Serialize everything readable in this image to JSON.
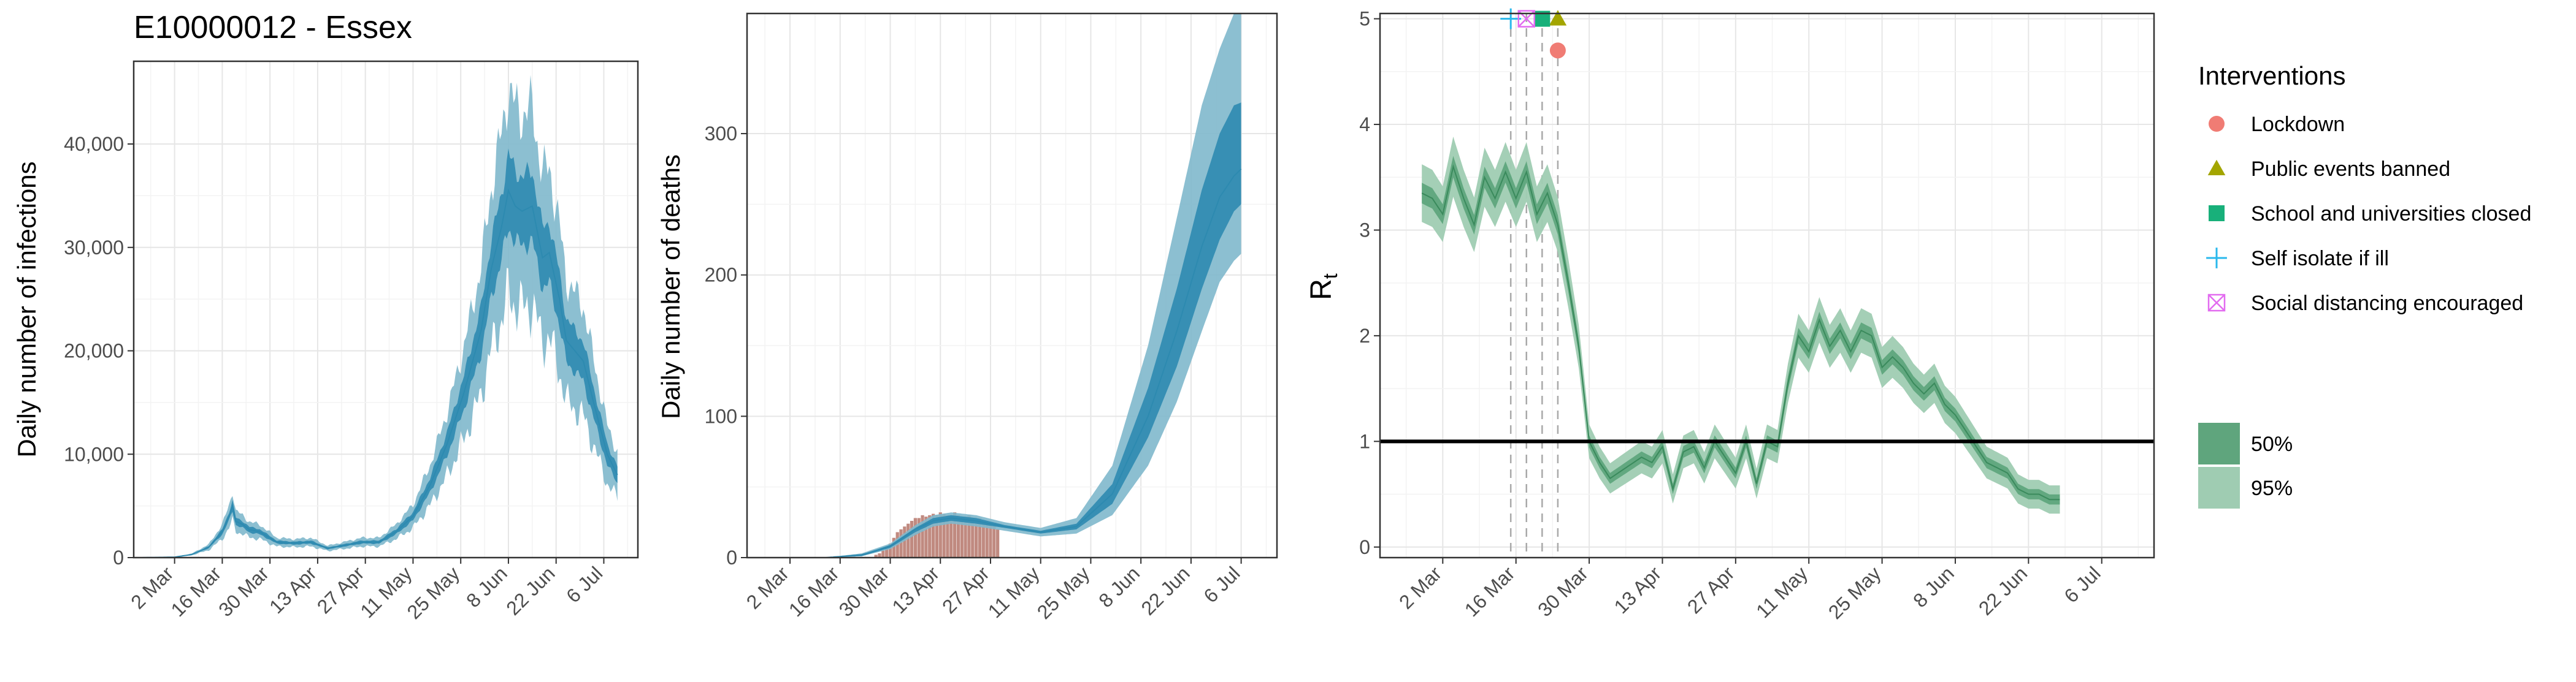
{
  "title": "E10000012 - Essex",
  "chart_data": [
    {
      "type": "area",
      "ylabel": "Daily number of infections",
      "xlabel": "",
      "x_ticks": [
        "2 Mar",
        "16 Mar",
        "30 Mar",
        "13 Apr",
        "27 Apr",
        "11 May",
        "25 May",
        "8 Jun",
        "22 Jun",
        "6 Jul"
      ],
      "y_ticks": [
        "0",
        "10,000",
        "20,000",
        "30,000",
        "40,000"
      ],
      "ylim": [
        0,
        48000
      ],
      "median": [
        [
          -10,
          0
        ],
        [
          0,
          50
        ],
        [
          5,
          300
        ],
        [
          10,
          1000
        ],
        [
          14,
          2500
        ],
        [
          16,
          4000
        ],
        [
          17,
          5000
        ],
        [
          18,
          3500
        ],
        [
          20,
          3200
        ],
        [
          22,
          2700
        ],
        [
          25,
          2500
        ],
        [
          30,
          1500
        ],
        [
          35,
          1400
        ],
        [
          40,
          1500
        ],
        [
          45,
          900
        ],
        [
          50,
          1200
        ],
        [
          55,
          1500
        ],
        [
          60,
          1500
        ],
        [
          65,
          2500
        ],
        [
          70,
          4000
        ],
        [
          75,
          7000
        ],
        [
          80,
          11000
        ],
        [
          85,
          16000
        ],
        [
          90,
          22000
        ],
        [
          93,
          28000
        ],
        [
          96,
          32000
        ],
        [
          98,
          35500
        ],
        [
          100,
          34000
        ],
        [
          102,
          33500
        ],
        [
          105,
          34000
        ],
        [
          108,
          29000
        ],
        [
          110,
          29500
        ],
        [
          113,
          25000
        ],
        [
          115,
          21000
        ],
        [
          120,
          19000
        ],
        [
          123,
          15000
        ],
        [
          127,
          10000
        ],
        [
          130,
          8000
        ]
      ],
      "band50_halfwidth_fraction": 0.1,
      "band95_halfwidth_fraction": 0.28,
      "colors": {
        "band95": "#7fb8cc",
        "band50": "#2d8ab0",
        "line": "#2d8ab0"
      }
    },
    {
      "type": "area",
      "ylabel": "Daily number of deaths",
      "xlabel": "",
      "x_ticks": [
        "2 Mar",
        "16 Mar",
        "30 Mar",
        "13 Apr",
        "27 Apr",
        "11 May",
        "25 May",
        "8 Jun",
        "22 Jun",
        "6 Jul"
      ],
      "y_ticks": [
        "0",
        "100",
        "200",
        "300"
      ],
      "ylim": [
        0,
        385
      ],
      "median": [
        [
          -10,
          0
        ],
        [
          10,
          0
        ],
        [
          20,
          2
        ],
        [
          28,
          8
        ],
        [
          35,
          20
        ],
        [
          40,
          26
        ],
        [
          45,
          28
        ],
        [
          52,
          26
        ],
        [
          60,
          22
        ],
        [
          70,
          18
        ],
        [
          80,
          22
        ],
        [
          90,
          45
        ],
        [
          100,
          100
        ],
        [
          108,
          160
        ],
        [
          115,
          220
        ],
        [
          120,
          255
        ],
        [
          124,
          270
        ],
        [
          126,
          275
        ]
      ],
      "upper95": [
        [
          -10,
          0
        ],
        [
          10,
          0
        ],
        [
          20,
          3
        ],
        [
          28,
          10
        ],
        [
          35,
          23
        ],
        [
          40,
          30
        ],
        [
          45,
          32
        ],
        [
          52,
          30
        ],
        [
          60,
          25
        ],
        [
          70,
          21
        ],
        [
          80,
          28
        ],
        [
          90,
          65
        ],
        [
          100,
          150
        ],
        [
          108,
          240
        ],
        [
          115,
          320
        ],
        [
          120,
          360
        ],
        [
          124,
          385
        ],
        [
          126,
          385
        ]
      ],
      "lower95": [
        [
          -10,
          0
        ],
        [
          10,
          0
        ],
        [
          20,
          1
        ],
        [
          28,
          6
        ],
        [
          35,
          16
        ],
        [
          40,
          22
        ],
        [
          45,
          24
        ],
        [
          52,
          22
        ],
        [
          60,
          19
        ],
        [
          70,
          15
        ],
        [
          80,
          17
        ],
        [
          90,
          30
        ],
        [
          100,
          65
        ],
        [
          108,
          110
        ],
        [
          115,
          160
        ],
        [
          120,
          195
        ],
        [
          124,
          210
        ],
        [
          126,
          215
        ]
      ],
      "upper50": [
        [
          -10,
          0
        ],
        [
          10,
          0
        ],
        [
          20,
          2
        ],
        [
          28,
          9
        ],
        [
          35,
          21
        ],
        [
          40,
          28
        ],
        [
          45,
          30
        ],
        [
          52,
          28
        ],
        [
          60,
          23
        ],
        [
          70,
          19
        ],
        [
          80,
          24
        ],
        [
          90,
          52
        ],
        [
          100,
          120
        ],
        [
          108,
          190
        ],
        [
          115,
          260
        ],
        [
          120,
          300
        ],
        [
          124,
          320
        ],
        [
          126,
          322
        ]
      ],
      "lower50": [
        [
          -10,
          0
        ],
        [
          10,
          0
        ],
        [
          20,
          1
        ],
        [
          28,
          7
        ],
        [
          35,
          18
        ],
        [
          40,
          24
        ],
        [
          45,
          26
        ],
        [
          52,
          24
        ],
        [
          60,
          21
        ],
        [
          70,
          17
        ],
        [
          80,
          20
        ],
        [
          90,
          38
        ],
        [
          100,
          85
        ],
        [
          108,
          135
        ],
        [
          115,
          190
        ],
        [
          120,
          225
        ],
        [
          124,
          245
        ],
        [
          126,
          250
        ]
      ],
      "observed_deaths": [
        {
          "start": 24,
          "values": [
            2,
            3,
            5,
            8,
            10,
            14,
            18,
            20,
            22,
            24,
            26,
            28,
            28,
            30,
            29,
            30,
            31,
            30,
            32,
            31,
            30,
            29,
            32,
            30,
            28,
            29,
            30,
            27,
            26,
            28,
            25,
            24,
            24,
            22,
            20
          ]
        }
      ],
      "colors": {
        "band95": "#7fb8cc",
        "band50": "#2d8ab0",
        "line": "#2d8ab0",
        "observed": "#c08a80"
      }
    },
    {
      "type": "area",
      "ylabel": "Rt",
      "xlabel": "",
      "x_ticks": [
        "2 Mar",
        "16 Mar",
        "30 Mar",
        "13 Apr",
        "27 Apr",
        "11 May",
        "25 May",
        "8 Jun",
        "22 Jun",
        "6 Jul"
      ],
      "y_ticks": [
        "0",
        "1",
        "2",
        "3",
        "4",
        "5"
      ],
      "ylim": [
        -0.1,
        5.05
      ],
      "threshold": 1,
      "median": [
        [
          -4,
          3.35
        ],
        [
          -2,
          3.3
        ],
        [
          0,
          3.15
        ],
        [
          2,
          3.6
        ],
        [
          4,
          3.3
        ],
        [
          6,
          3.05
        ],
        [
          8,
          3.5
        ],
        [
          10,
          3.3
        ],
        [
          12,
          3.55
        ],
        [
          14,
          3.3
        ],
        [
          16,
          3.55
        ],
        [
          18,
          3.15
        ],
        [
          20,
          3.35
        ],
        [
          22,
          3.05
        ],
        [
          24,
          2.5
        ],
        [
          26,
          1.9
        ],
        [
          28,
          1.0
        ],
        [
          30,
          0.8
        ],
        [
          32,
          0.65
        ],
        [
          35,
          0.75
        ],
        [
          38,
          0.85
        ],
        [
          40,
          0.8
        ],
        [
          42,
          0.95
        ],
        [
          44,
          0.55
        ],
        [
          46,
          0.9
        ],
        [
          48,
          0.95
        ],
        [
          50,
          0.75
        ],
        [
          52,
          1.0
        ],
        [
          54,
          0.85
        ],
        [
          56,
          0.7
        ],
        [
          58,
          1.0
        ],
        [
          60,
          0.6
        ],
        [
          62,
          1.0
        ],
        [
          64,
          0.95
        ],
        [
          66,
          1.55
        ],
        [
          68,
          2.0
        ],
        [
          70,
          1.85
        ],
        [
          72,
          2.15
        ],
        [
          74,
          1.9
        ],
        [
          76,
          2.05
        ],
        [
          78,
          1.85
        ],
        [
          80,
          2.05
        ],
        [
          82,
          2.0
        ],
        [
          84,
          1.7
        ],
        [
          86,
          1.8
        ],
        [
          88,
          1.7
        ],
        [
          90,
          1.55
        ],
        [
          92,
          1.45
        ],
        [
          94,
          1.55
        ],
        [
          96,
          1.35
        ],
        [
          98,
          1.25
        ],
        [
          100,
          1.1
        ],
        [
          102,
          0.95
        ],
        [
          104,
          0.8
        ],
        [
          106,
          0.75
        ],
        [
          108,
          0.7
        ],
        [
          110,
          0.55
        ],
        [
          112,
          0.5
        ],
        [
          114,
          0.5
        ],
        [
          116,
          0.45
        ],
        [
          118,
          0.45
        ]
      ],
      "band50_halfwidth": 0.1,
      "band95_halfwidth": 0.28,
      "interventions": [
        {
          "name": "Lockdown",
          "day": 22,
          "y": 4.7,
          "symbol": "circle",
          "color": "#f07c74"
        },
        {
          "name": "Public events banned",
          "day": 22,
          "y": 5.0,
          "symbol": "triangle",
          "color": "#a3a500"
        },
        {
          "name": "School and universities closed",
          "day": 19,
          "y": 5.0,
          "symbol": "square",
          "color": "#18b07a"
        },
        {
          "name": "Self isolate if ill",
          "day": 13,
          "y": 5.0,
          "symbol": "plus",
          "color": "#2ab8ec"
        },
        {
          "name": "Social distancing encouraged",
          "day": 16,
          "y": 5.0,
          "symbol": "boxx",
          "color": "#e26bf0"
        }
      ],
      "colors": {
        "band95": "#9fccb2",
        "band50": "#5fa57d",
        "line": "#3a8a5c"
      }
    }
  ],
  "legend": {
    "title": "Interventions",
    "items": [
      {
        "label": "Lockdown",
        "symbol": "circle",
        "color": "#f07c74"
      },
      {
        "label": "Public events banned",
        "symbol": "triangle",
        "color": "#a3a500"
      },
      {
        "label": "School and universities closed",
        "symbol": "square",
        "color": "#18b07a"
      },
      {
        "label": "Self isolate if ill",
        "symbol": "plus",
        "color": "#2ab8ec"
      },
      {
        "label": "Social distancing encouraged",
        "symbol": "boxx",
        "color": "#e26bf0"
      }
    ],
    "ci_items": [
      {
        "label": "50%",
        "color": "#5fa57d"
      },
      {
        "label": "95%",
        "color": "#9fccb2"
      }
    ]
  }
}
